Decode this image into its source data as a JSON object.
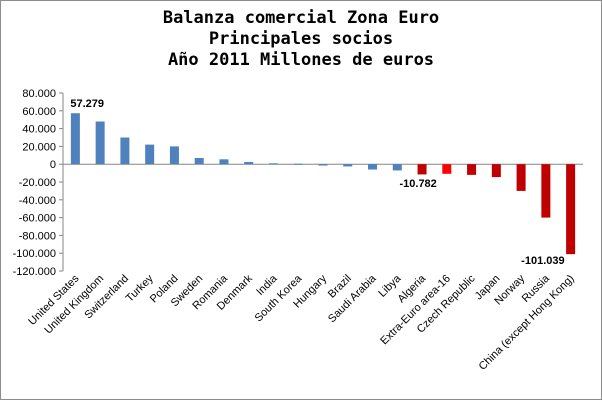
{
  "chart_data": {
    "type": "bar",
    "title_lines": [
      "Balanza comercial Zona Euro",
      "Principales socios",
      "Año 2011 Millones de euros"
    ],
    "categories": [
      "United States",
      "United Kingdom",
      "Switzerland",
      "Turkey",
      "Poland",
      "Sweden",
      "Romania",
      "Denmark",
      "India",
      "South Korea",
      "Hungary",
      "Brazil",
      "Saudi Arabia",
      "Libya",
      "Algeria",
      "Extra-Euro area-16",
      "Czech Republic",
      "Japan",
      "Norway",
      "Russia",
      "China (except Hong Kong)"
    ],
    "values": [
      57279,
      48000,
      30000,
      22000,
      20000,
      7000,
      5500,
      2500,
      1000,
      500,
      -1500,
      -2500,
      -6000,
      -7000,
      -11500,
      -10782,
      -12000,
      -14500,
      -30000,
      -60000,
      -101039
    ],
    "bar_colors": [
      "#4f81bd",
      "#4f81bd",
      "#4f81bd",
      "#4f81bd",
      "#4f81bd",
      "#4f81bd",
      "#4f81bd",
      "#4f81bd",
      "#4f81bd",
      "#4f81bd",
      "#4f81bd",
      "#4f81bd",
      "#4f81bd",
      "#4f81bd",
      "#c00000",
      "#ff0000",
      "#c00000",
      "#c00000",
      "#c00000",
      "#c00000",
      "#c00000"
    ],
    "y_ticks": [
      "80.000",
      "60.000",
      "40.000",
      "20.000",
      "0",
      "-20.000",
      "-40.000",
      "-60.000",
      "-80.000",
      "-100.000",
      "-120.000"
    ],
    "ylim": [
      -120000,
      80000
    ],
    "data_labels": [
      {
        "index": 0,
        "text": "57.279"
      },
      {
        "index": 15,
        "text": "-10.782"
      },
      {
        "index": 20,
        "text": "-101.039"
      }
    ],
    "grid": false,
    "legend": "none"
  }
}
